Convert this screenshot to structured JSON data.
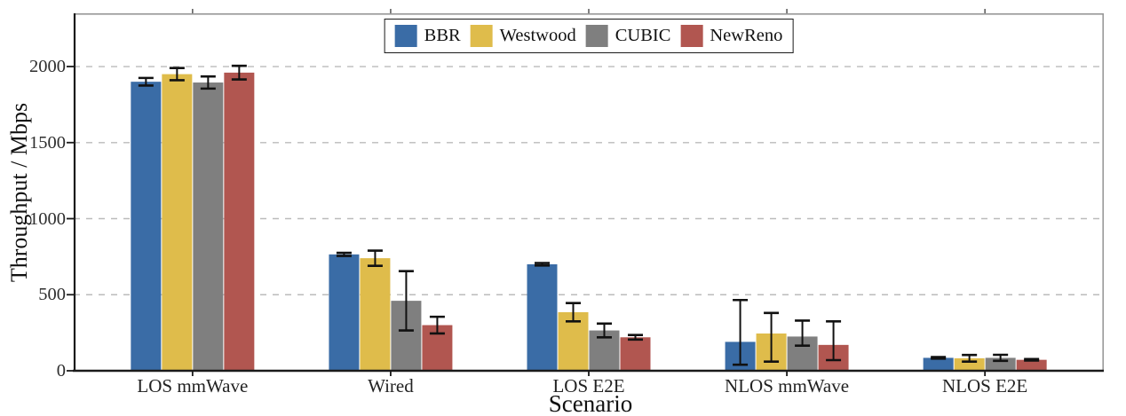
{
  "chart_data": {
    "type": "bar",
    "title": "",
    "xlabel": "Scenario",
    "ylabel": "Throughput / Mbps",
    "categories": [
      "LOS mmWave",
      "Wired",
      "LOS E2E",
      "NLOS mmWave",
      "NLOS E2E"
    ],
    "series": [
      {
        "name": "BBR",
        "color": "#3A6CA6",
        "values": [
          1900,
          765,
          700,
          190,
          85
        ],
        "err_minus": [
          25,
          10,
          8,
          150,
          5
        ],
        "err_plus": [
          25,
          10,
          8,
          275,
          5
        ]
      },
      {
        "name": "Westwood",
        "color": "#DFBC4B",
        "values": [
          1950,
          740,
          385,
          245,
          82
        ],
        "err_minus": [
          40,
          50,
          60,
          185,
          22
        ],
        "err_plus": [
          40,
          50,
          60,
          135,
          22
        ]
      },
      {
        "name": "CUBIC",
        "color": "#7F7F7F",
        "values": [
          1895,
          460,
          265,
          225,
          85
        ],
        "err_minus": [
          40,
          195,
          45,
          60,
          20
        ],
        "err_plus": [
          40,
          195,
          45,
          105,
          20
        ]
      },
      {
        "name": "NewReno",
        "color": "#B15650",
        "values": [
          1960,
          300,
          220,
          170,
          72
        ],
        "err_minus": [
          45,
          55,
          15,
          100,
          5
        ],
        "err_plus": [
          45,
          55,
          15,
          155,
          5
        ]
      }
    ],
    "ylim": [
      0,
      2350
    ],
    "yticks": [
      0,
      500,
      1000,
      1500,
      2000
    ],
    "grid": "dashed-horizontal",
    "legend_position": "top-center",
    "error_bars": true,
    "colors": {
      "axis": "#1a1a1a",
      "secondary_spine": "#999999",
      "gridline": "#bbbbbb",
      "error_bar": "#111111"
    }
  }
}
